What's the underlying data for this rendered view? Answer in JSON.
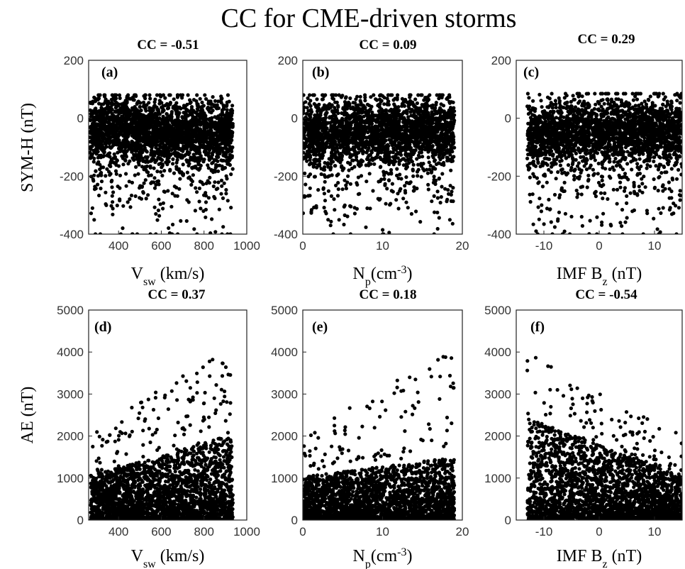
{
  "figure_title": "CC for CME-driven storms",
  "chart_data": [
    {
      "type": "scatter",
      "panel": "(a)",
      "title": "CC = -0.51",
      "xlabel": "V_sw (km/s)",
      "ylabel": "SYM-H (nT)",
      "xlim": [
        260,
        1000
      ],
      "ylim": [
        -400,
        200
      ],
      "xticks": [
        400,
        600,
        800,
        1000
      ],
      "yticks": [
        -400,
        -200,
        0,
        200
      ],
      "xticklabels": [
        "400",
        "600",
        "800",
        "1000"
      ],
      "yticklabels": [
        "-400",
        "-200",
        "0",
        "200"
      ],
      "point_cloud": {
        "x_range": [
          265,
          935
        ],
        "y_range": [
          -400,
          80
        ],
        "correlation": -0.51
      }
    },
    {
      "type": "scatter",
      "panel": "(b)",
      "title": "CC = 0.09",
      "xlabel": "N_p(cm^-3)",
      "ylabel": "",
      "xlim": [
        0,
        20
      ],
      "ylim": [
        -400,
        200
      ],
      "xticks": [
        0,
        10,
        20
      ],
      "yticks": [
        -400,
        -200,
        0,
        200
      ],
      "xticklabels": [
        "0",
        "10",
        "20"
      ],
      "yticklabels": [
        "-400",
        "-200",
        "0",
        "200"
      ],
      "point_cloud": {
        "x_range": [
          0,
          19
        ],
        "y_range": [
          -400,
          80
        ],
        "correlation": 0.09
      }
    },
    {
      "type": "scatter",
      "panel": "(c)",
      "title": "CC = 0.29",
      "xlabel": "IMF B_z (nT)",
      "ylabel": "",
      "xlim": [
        -15,
        15
      ],
      "ylim": [
        -400,
        200
      ],
      "xticks": [
        -10,
        0,
        10
      ],
      "yticks": [
        -400,
        -200,
        0,
        200
      ],
      "xticklabels": [
        "-10",
        "0",
        "10"
      ],
      "yticklabels": [
        "-400",
        "-200",
        "0",
        "200"
      ],
      "point_cloud": {
        "x_range": [
          -13,
          15
        ],
        "y_range": [
          -400,
          85
        ],
        "correlation": 0.29
      }
    },
    {
      "type": "scatter",
      "panel": "(d)",
      "title": "CC = 0.37",
      "xlabel": "V_sw (km/s)",
      "ylabel": "AE (nT)",
      "xlim": [
        260,
        1000
      ],
      "ylim": [
        0,
        5000
      ],
      "xticks": [
        400,
        600,
        800,
        1000
      ],
      "yticks": [
        0,
        1000,
        2000,
        3000,
        4000,
        5000
      ],
      "xticklabels": [
        "400",
        "600",
        "800",
        "1000"
      ],
      "yticklabels": [
        "0",
        "1000",
        "2000",
        "3000",
        "4000",
        "5000"
      ],
      "point_cloud": {
        "x_range": [
          270,
          935
        ],
        "y_range": [
          0,
          4200
        ],
        "correlation": 0.37
      }
    },
    {
      "type": "scatter",
      "panel": "(e)",
      "title": "CC = 0.18",
      "xlabel": "N_p(cm^-3)",
      "ylabel": "",
      "xlim": [
        0,
        20
      ],
      "ylim": [
        0,
        5000
      ],
      "xticks": [
        0,
        10,
        20
      ],
      "yticks": [
        0,
        1000,
        2000,
        3000,
        4000,
        5000
      ],
      "xticklabels": [
        "0",
        "10",
        "20"
      ],
      "yticklabels": [
        "0",
        "1000",
        "2000",
        "3000",
        "4000",
        "5000"
      ],
      "point_cloud": {
        "x_range": [
          0,
          19
        ],
        "y_range": [
          0,
          4100
        ],
        "correlation": 0.18
      }
    },
    {
      "type": "scatter",
      "panel": "(f)",
      "title": "CC = -0.54",
      "xlabel": "IMF B_z (nT)",
      "ylabel": "",
      "xlim": [
        -15,
        15
      ],
      "ylim": [
        0,
        5000
      ],
      "xticks": [
        -10,
        0,
        10
      ],
      "yticks": [
        0,
        1000,
        2000,
        3000,
        4000,
        5000
      ],
      "xticklabels": [
        "-10",
        "0",
        "10"
      ],
      "yticklabels": [
        "0",
        "1000",
        "2000",
        "3000",
        "4000",
        "5000"
      ],
      "point_cloud": {
        "x_range": [
          -13,
          15
        ],
        "y_range": [
          0,
          4100
        ],
        "correlation": -0.54
      }
    }
  ]
}
